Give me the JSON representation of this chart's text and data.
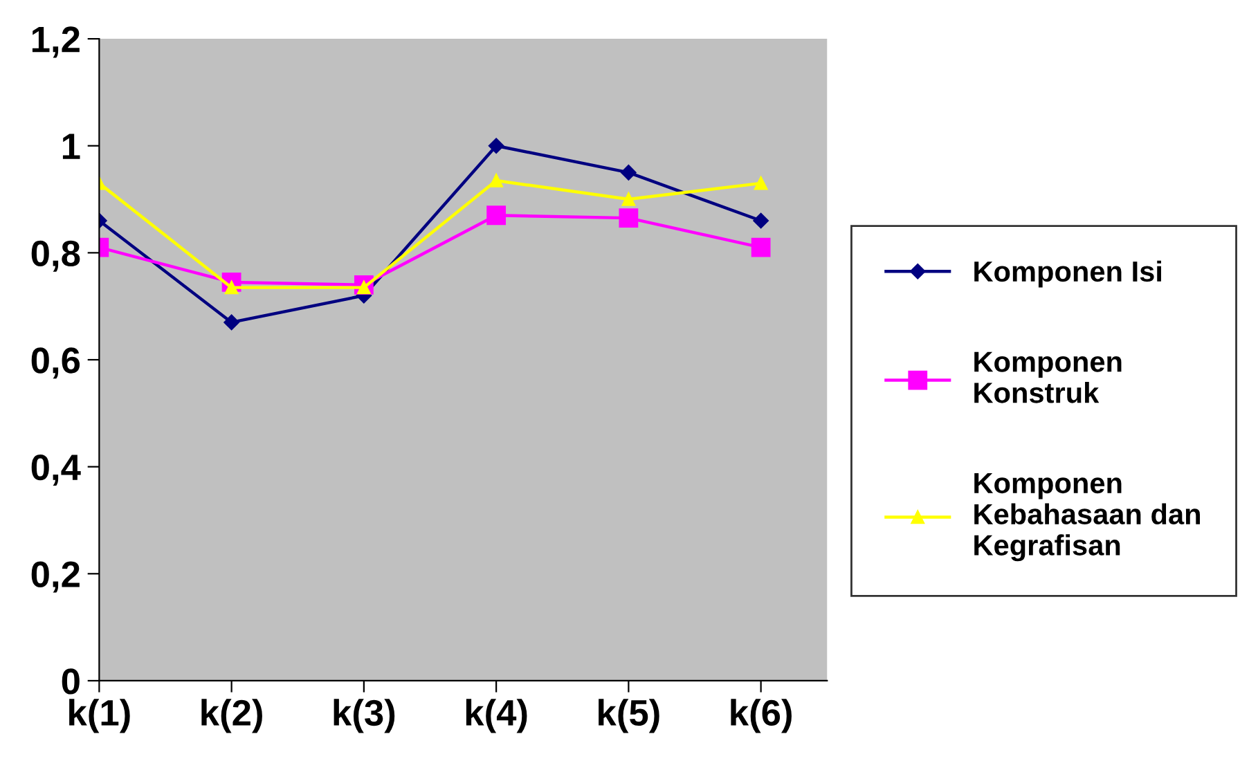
{
  "chart_data": {
    "type": "line",
    "categories": [
      "k(1)",
      "k(2)",
      "k(3)",
      "k(4)",
      "k(5)",
      "k(6)"
    ],
    "series": [
      {
        "name": "Komponen Isi",
        "color": "#000080",
        "marker": "diamond",
        "values": [
          0.86,
          0.67,
          0.72,
          1.0,
          0.95,
          0.86
        ]
      },
      {
        "name": "Komponen Konstruk",
        "color": "#ff00ff",
        "marker": "square",
        "values": [
          0.81,
          0.745,
          0.74,
          0.87,
          0.865,
          0.81
        ]
      },
      {
        "name": "Komponen Kebahasaan dan Kegrafisan",
        "color": "#ffff00",
        "marker": "triangle",
        "values": [
          0.93,
          0.735,
          0.735,
          0.935,
          0.9,
          0.93
        ]
      }
    ],
    "ylim": [
      0,
      1.2
    ],
    "yticks": [
      {
        "value": 0,
        "label": "0"
      },
      {
        "value": 0.2,
        "label": "0,2"
      },
      {
        "value": 0.4,
        "label": "0,4"
      },
      {
        "value": 0.6,
        "label": "0,6"
      },
      {
        "value": 0.8,
        "label": "0,8"
      },
      {
        "value": 1,
        "label": "1"
      },
      {
        "value": 1.2,
        "label": "1,2"
      }
    ],
    "grid": false,
    "legend": "right"
  }
}
